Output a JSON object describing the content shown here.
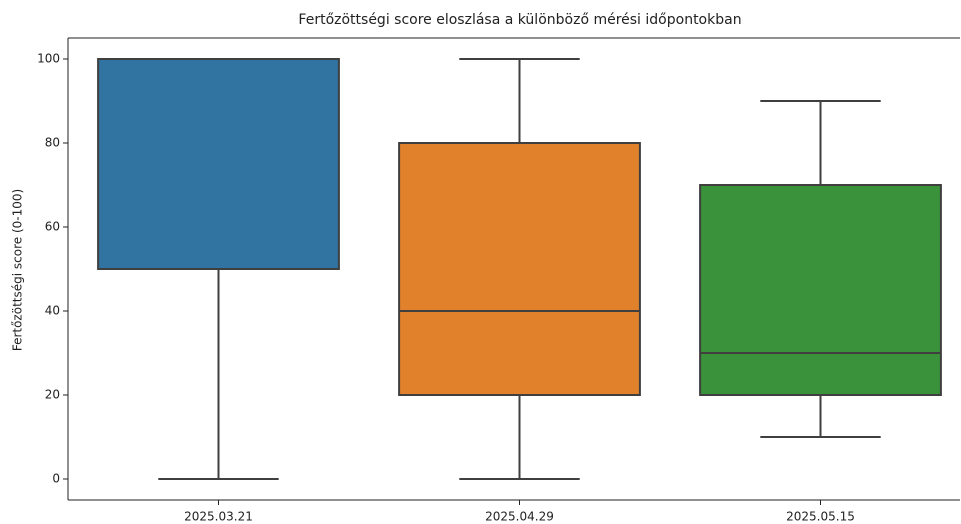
{
  "chart_data": {
    "type": "box",
    "title": "Fertőzöttségi score eloszlása a különböző mérési időpontokban",
    "y_label": "Fertőzöttségi score (0-100)",
    "categories": [
      "2025.03.21",
      "2025.04.29",
      "2025.05.15"
    ],
    "boxes": [
      {
        "min": 0,
        "q1": 50,
        "median": 50,
        "q3": 100,
        "max": 100,
        "color": "#3274a1"
      },
      {
        "min": 0,
        "q1": 20,
        "median": 40,
        "q3": 80,
        "max": 100,
        "color": "#e1812c"
      },
      {
        "min": 10,
        "q1": 20,
        "median": 30,
        "q3": 70,
        "max": 90,
        "color": "#3a923a"
      }
    ],
    "ylim": [
      -5,
      105
    ],
    "yticks": [
      0,
      20,
      40,
      60,
      80,
      100
    ],
    "grid": false
  }
}
